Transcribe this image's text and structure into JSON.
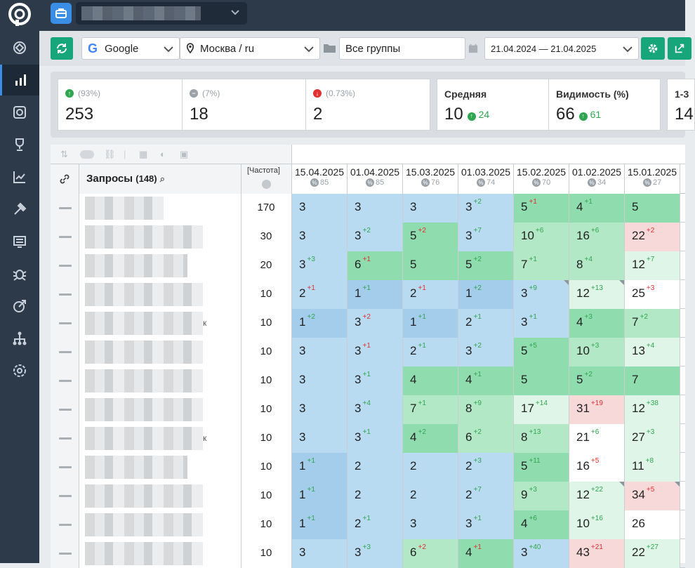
{
  "toolbar": {
    "engine": "Google",
    "region": "Москва / ru",
    "group": "Все группы",
    "date_range": "21.04.2024 — 21.04.2025"
  },
  "stats": {
    "cards": [
      {
        "label": "(93%)",
        "value": "253",
        "icon": "arrow-up-circle",
        "color": "#2ea64f"
      },
      {
        "label": "(7%)",
        "value": "18",
        "icon": "minus-circle",
        "color": "#9aa1a7"
      },
      {
        "label": "(0.73%)",
        "value": "2",
        "icon": "arrow-down-circle",
        "color": "#e0302f"
      }
    ],
    "average": {
      "label": "Средняя",
      "value": "10",
      "delta": "24"
    },
    "visibility": {
      "label": "Видимость (%)",
      "value": "66",
      "delta": "61"
    },
    "partial": {
      "label": "1-3",
      "value": "14"
    }
  },
  "table": {
    "queries_label": "Запросы",
    "queries_count": "(148)",
    "freq_label": "[Частота]",
    "columns": [
      {
        "date": "15.04.2025",
        "pct": "85"
      },
      {
        "date": "01.04.2025",
        "pct": "85"
      },
      {
        "date": "15.03.2025",
        "pct": "76"
      },
      {
        "date": "01.03.2025",
        "pct": "74"
      },
      {
        "date": "15.02.2025",
        "pct": "70"
      },
      {
        "date": "01.02.2025",
        "pct": "34"
      },
      {
        "date": "15.01.2025",
        "pct": "27"
      }
    ],
    "rows": [
      {
        "freq": "170",
        "tail": "",
        "cells": [
          [
            "3",
            "",
            "",
            "b2"
          ],
          [
            "3",
            "",
            "",
            "b2"
          ],
          [
            "3",
            "",
            "",
            "b2"
          ],
          [
            "3",
            "2",
            "up",
            "b2"
          ],
          [
            "5",
            "1",
            "dn",
            "g2"
          ],
          [
            "4",
            "1",
            "up",
            "g2"
          ],
          [
            "5",
            "",
            "",
            "g2"
          ]
        ]
      },
      {
        "freq": "30",
        "tail": "",
        "cells": [
          [
            "3",
            "",
            "",
            "b2"
          ],
          [
            "3",
            "2",
            "up",
            "b2"
          ],
          [
            "5",
            "2",
            "dn",
            "g2"
          ],
          [
            "3",
            "7",
            "up",
            "b2"
          ],
          [
            "10",
            "6",
            "up",
            "g1"
          ],
          [
            "16",
            "6",
            "up",
            "g1"
          ],
          [
            "22",
            "2",
            "dn",
            "r"
          ]
        ]
      },
      {
        "freq": "20",
        "tail": "",
        "cells": [
          [
            "3",
            "3",
            "up",
            "b2"
          ],
          [
            "6",
            "1",
            "dn",
            "g2"
          ],
          [
            "5",
            "",
            "",
            "g2"
          ],
          [
            "5",
            "2",
            "up",
            "g2"
          ],
          [
            "7",
            "1",
            "up",
            "g1"
          ],
          [
            "8",
            "4",
            "up",
            "g1"
          ],
          [
            "12",
            "7",
            "up",
            "g0"
          ]
        ]
      },
      {
        "freq": "10",
        "tail": "",
        "cells": [
          [
            "2",
            "1",
            "dn",
            "b2"
          ],
          [
            "1",
            "1",
            "up",
            "b3"
          ],
          [
            "2",
            "1",
            "dn",
            "b2"
          ],
          [
            "1",
            "2",
            "up",
            "b3"
          ],
          [
            "3",
            "9",
            "up",
            "b2c"
          ],
          [
            "12",
            "13",
            "up",
            "g0c"
          ],
          [
            "25",
            "3",
            "dn",
            "w"
          ]
        ]
      },
      {
        "freq": "10",
        "tail": "к",
        "cells": [
          [
            "1",
            "2",
            "up",
            "b3"
          ],
          [
            "3",
            "2",
            "dn",
            "b2"
          ],
          [
            "1",
            "1",
            "up",
            "b3"
          ],
          [
            "2",
            "1",
            "up",
            "b2"
          ],
          [
            "3",
            "1",
            "up",
            "b2"
          ],
          [
            "4",
            "3",
            "up",
            "g2"
          ],
          [
            "7",
            "2",
            "up",
            "g1"
          ]
        ]
      },
      {
        "freq": "10",
        "tail": "",
        "cells": [
          [
            "3",
            "",
            "",
            "b2"
          ],
          [
            "3",
            "1",
            "dn",
            "b2"
          ],
          [
            "2",
            "1",
            "up",
            "b2"
          ],
          [
            "3",
            "2",
            "up",
            "b2"
          ],
          [
            "5",
            "5",
            "up",
            "g2"
          ],
          [
            "10",
            "3",
            "up",
            "g1"
          ],
          [
            "13",
            "4",
            "up",
            "g0"
          ]
        ]
      },
      {
        "freq": "10",
        "tail": "",
        "cells": [
          [
            "3",
            "",
            "",
            "b2"
          ],
          [
            "3",
            "1",
            "up",
            "b2"
          ],
          [
            "4",
            "",
            "",
            "g2"
          ],
          [
            "4",
            "1",
            "up",
            "g2"
          ],
          [
            "5",
            "",
            "",
            "g2"
          ],
          [
            "5",
            "2",
            "up",
            "g2"
          ],
          [
            "7",
            "",
            "",
            "g2"
          ]
        ]
      },
      {
        "freq": "10",
        "tail": "",
        "cells": [
          [
            "3",
            "",
            "",
            "b2"
          ],
          [
            "3",
            "4",
            "up",
            "b2"
          ],
          [
            "7",
            "1",
            "up",
            "g1"
          ],
          [
            "8",
            "9",
            "up",
            "g1"
          ],
          [
            "17",
            "14",
            "up",
            "g0"
          ],
          [
            "31",
            "19",
            "dn",
            "r"
          ],
          [
            "12",
            "38",
            "up",
            "g0"
          ]
        ]
      },
      {
        "freq": "10",
        "tail": "к",
        "cells": [
          [
            "3",
            "",
            "",
            "b2"
          ],
          [
            "3",
            "1",
            "up",
            "b2"
          ],
          [
            "4",
            "2",
            "up",
            "g2"
          ],
          [
            "6",
            "2",
            "up",
            "g1"
          ],
          [
            "8",
            "13",
            "up",
            "g1"
          ],
          [
            "21",
            "6",
            "up",
            "w"
          ],
          [
            "27",
            "3",
            "up",
            "g0"
          ]
        ]
      },
      {
        "freq": "10",
        "tail": "",
        "cells": [
          [
            "1",
            "1",
            "up",
            "b3"
          ],
          [
            "2",
            "",
            "",
            "b2"
          ],
          [
            "2",
            "",
            "",
            "b2"
          ],
          [
            "2",
            "3",
            "up",
            "b2"
          ],
          [
            "5",
            "11",
            "up",
            "g2"
          ],
          [
            "16",
            "5",
            "dn",
            "w"
          ],
          [
            "11",
            "8",
            "up",
            "g0"
          ]
        ]
      },
      {
        "freq": "10",
        "tail": "",
        "cells": [
          [
            "1",
            "1",
            "up",
            "b3"
          ],
          [
            "2",
            "",
            "",
            "b2"
          ],
          [
            "2",
            "",
            "",
            "b2"
          ],
          [
            "2",
            "7",
            "up",
            "b2"
          ],
          [
            "9",
            "3",
            "up",
            "g1"
          ],
          [
            "12",
            "22",
            "up",
            "g0c"
          ],
          [
            "34",
            "5",
            "dn",
            "rc"
          ]
        ]
      },
      {
        "freq": "10",
        "tail": "",
        "cells": [
          [
            "1",
            "1",
            "up",
            "b3"
          ],
          [
            "2",
            "1",
            "up",
            "b2"
          ],
          [
            "3",
            "",
            "",
            "b2"
          ],
          [
            "3",
            "1",
            "up",
            "b2"
          ],
          [
            "4",
            "6",
            "up",
            "g2"
          ],
          [
            "10",
            "16",
            "up",
            "g0"
          ],
          [
            "26",
            "",
            "",
            "w"
          ]
        ]
      },
      {
        "freq": "10",
        "tail": "",
        "cells": [
          [
            "3",
            "",
            "",
            "b2"
          ],
          [
            "3",
            "3",
            "up",
            "b2"
          ],
          [
            "6",
            "2",
            "dn",
            "g1"
          ],
          [
            "4",
            "1",
            "dn",
            "g2"
          ],
          [
            "3",
            "40",
            "up",
            "b2"
          ],
          [
            "43",
            "21",
            "dn",
            "r"
          ],
          [
            "22",
            "27",
            "up",
            "g0"
          ]
        ]
      }
    ]
  }
}
